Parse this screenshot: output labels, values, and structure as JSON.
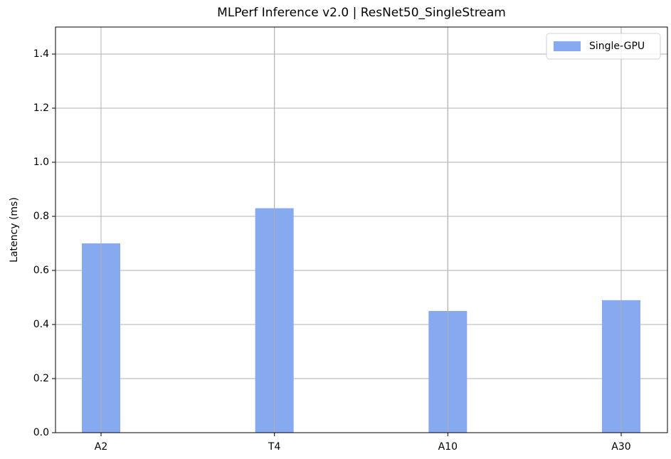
{
  "chart_data": {
    "type": "bar",
    "title": "MLPerf Inference v2.0 | ResNet50_SingleStream",
    "ylabel": "Latency (ms)",
    "categories": [
      "A2",
      "T4",
      "A10",
      "A30"
    ],
    "series": [
      {
        "name": "Single-GPU",
        "color": "#86a9ef",
        "values": [
          0.7,
          0.83,
          0.45,
          0.49
        ]
      }
    ],
    "ylim": [
      0,
      1.5
    ],
    "yticks": [
      {
        "value": 0,
        "label": "0.0"
      },
      0.2,
      0.4,
      0.6,
      0.8,
      {
        "value": 1,
        "label": "1.0"
      },
      1.2,
      1.4
    ],
    "grid": true,
    "legend": "upper right"
  }
}
